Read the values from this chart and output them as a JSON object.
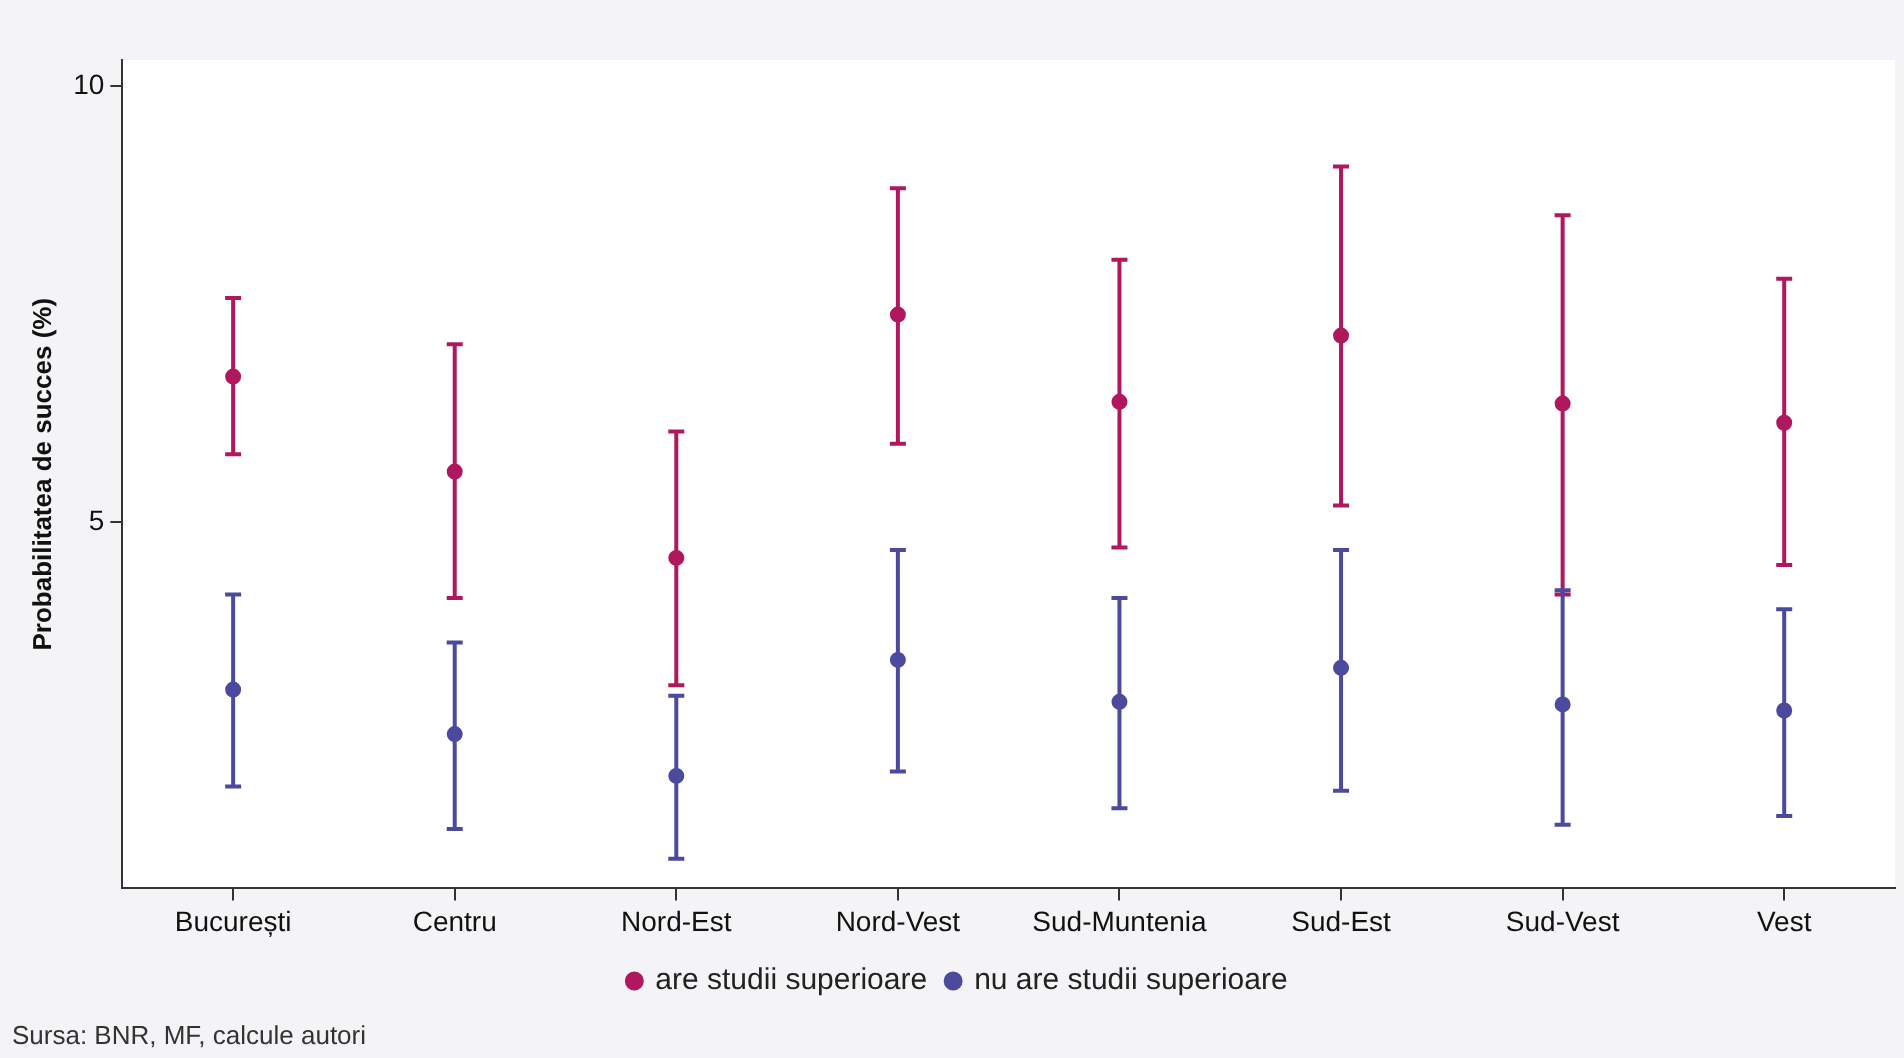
{
  "chart_data": {
    "type": "scatter",
    "ylabel": "Probabilitatea de succes (%)",
    "categories": [
      "București",
      "Centru",
      "Nord-Est",
      "Nord-Vest",
      "Sud-Muntenia",
      "Sud-Est",
      "Sud-Vest",
      "Vest"
    ],
    "series": [
      {
        "name": "are studii superioare",
        "color": "#b0185e",
        "values": [
          6.67,
          5.58,
          4.59,
          7.38,
          6.38,
          7.14,
          6.36,
          6.14
        ],
        "errors": [
          [
            5.78,
            7.57
          ],
          [
            4.13,
            7.04
          ],
          [
            3.13,
            6.04
          ],
          [
            5.9,
            8.83
          ],
          [
            4.71,
            8.01
          ],
          [
            5.19,
            9.08
          ],
          [
            4.17,
            8.52
          ],
          [
            4.51,
            7.79
          ]
        ]
      },
      {
        "name": "nu are studii superioare",
        "color": "#4c4a9e",
        "values": [
          3.08,
          2.57,
          2.09,
          3.42,
          2.94,
          3.33,
          2.91,
          2.84
        ],
        "errors": [
          [
            1.97,
            4.17
          ],
          [
            1.48,
            3.62
          ],
          [
            1.14,
            3.01
          ],
          [
            2.14,
            4.68
          ],
          [
            1.72,
            4.13
          ],
          [
            1.92,
            4.68
          ],
          [
            1.53,
            4.22
          ],
          [
            1.63,
            4
          ]
        ]
      }
    ],
    "ylim": [
      0.8,
      10.3
    ],
    "yticks": [
      5,
      10
    ],
    "grid": false,
    "legend": "bottom",
    "marker": "circle",
    "annotations": [
      "Sursa: BNR, MF, calcule autori"
    ]
  }
}
